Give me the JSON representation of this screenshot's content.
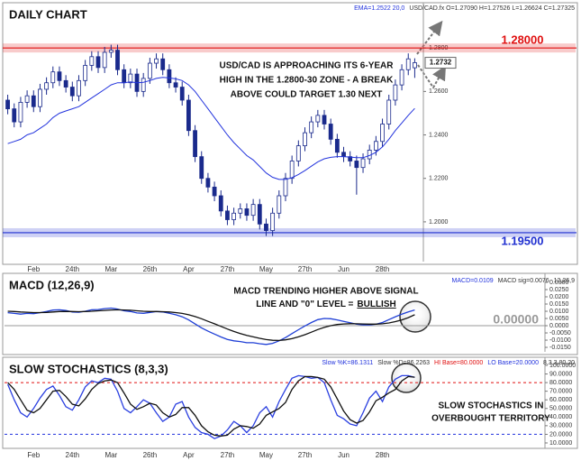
{
  "chart_data": [
    {
      "type": "candlestick",
      "title": "DAILY CHART",
      "header": [
        {
          "text": "EMA=1.2522 20,0",
          "color": "#2233dd"
        },
        {
          "text": "USD/CAD.fx O=1.27090 H=1.27526 L=1.26624 C=1.27325",
          "color": "#333333"
        }
      ],
      "categories": [
        null,
        null,
        null,
        null,
        "Feb",
        null,
        null,
        null,
        null,
        null,
        "24th",
        null,
        null,
        null,
        null,
        null,
        "Mar",
        null,
        null,
        null,
        null,
        null,
        "26th",
        null,
        null,
        null,
        null,
        null,
        "Apr",
        null,
        null,
        null,
        null,
        null,
        "27th",
        null,
        null,
        null,
        null,
        null,
        "May",
        null,
        null,
        null,
        null,
        null,
        "27th",
        null,
        null,
        null,
        null,
        null,
        "Jun",
        null,
        null,
        null,
        null,
        null,
        "28th",
        null,
        null,
        null,
        null,
        null
      ],
      "open": [
        1.256,
        1.252,
        1.246,
        1.255,
        1.258,
        1.253,
        1.261,
        1.264,
        1.269,
        1.265,
        1.262,
        1.258,
        1.265,
        1.272,
        1.276,
        1.271,
        1.278,
        1.279,
        1.27,
        1.264,
        1.268,
        1.26,
        1.266,
        1.273,
        1.275,
        1.27,
        1.264,
        1.262,
        1.256,
        1.242,
        1.23,
        1.22,
        1.216,
        1.212,
        1.205,
        1.201,
        1.204,
        1.206,
        1.203,
        1.208,
        1.199,
        1.196,
        1.204,
        1.212,
        1.22,
        1.228,
        1.235,
        1.241,
        1.246,
        1.249,
        1.245,
        1.238,
        1.232,
        1.23,
        1.228,
        1.225,
        1.229,
        1.233,
        1.237,
        1.245,
        1.256,
        1.263,
        1.27,
        1.2709
      ],
      "high": [
        1.2585,
        1.2545,
        1.2575,
        1.2605,
        1.2605,
        1.2635,
        1.2665,
        1.2715,
        1.2715,
        1.2675,
        1.2645,
        1.2675,
        1.2745,
        1.2785,
        1.2785,
        1.2805,
        1.2815,
        1.2815,
        1.2725,
        1.2705,
        1.2705,
        1.2685,
        1.2755,
        1.2775,
        1.2775,
        1.2725,
        1.2665,
        1.2645,
        1.2585,
        1.2445,
        1.2325,
        1.2225,
        1.2185,
        1.2145,
        1.2075,
        1.2065,
        1.2085,
        1.2085,
        1.2105,
        1.2105,
        1.2015,
        1.2065,
        1.2145,
        1.2225,
        1.2305,
        1.2375,
        1.2435,
        1.2485,
        1.2515,
        1.2515,
        1.2475,
        1.2405,
        1.2345,
        1.2325,
        1.2305,
        1.2315,
        1.2355,
        1.2395,
        1.2475,
        1.2585,
        1.2655,
        1.2725,
        1.2775,
        1.27526
      ],
      "low": [
        1.2495,
        1.2435,
        1.2435,
        1.2525,
        1.2505,
        1.2505,
        1.2585,
        1.2615,
        1.2625,
        1.2595,
        1.2555,
        1.2555,
        1.2625,
        1.2695,
        1.2685,
        1.2685,
        1.2755,
        1.2675,
        1.2615,
        1.2615,
        1.2575,
        1.2575,
        1.2635,
        1.2705,
        1.2675,
        1.2615,
        1.2595,
        1.2535,
        1.2395,
        1.2275,
        1.2175,
        1.2135,
        1.2095,
        1.2025,
        1.1985,
        1.1985,
        1.2015,
        1.2005,
        1.2005,
        1.1965,
        1.1935,
        1.1935,
        1.2015,
        1.2095,
        1.2175,
        1.2255,
        1.2325,
        1.2385,
        1.2435,
        1.2425,
        1.2355,
        1.2295,
        1.2275,
        1.2255,
        1.2125,
        1.2225,
        1.2265,
        1.2305,
        1.2345,
        1.2425,
        1.2535,
        1.2605,
        1.2675,
        1.26624
      ],
      "close": [
        1.252,
        1.246,
        1.255,
        1.258,
        1.253,
        1.261,
        1.264,
        1.269,
        1.265,
        1.262,
        1.258,
        1.265,
        1.272,
        1.276,
        1.271,
        1.278,
        1.279,
        1.27,
        1.264,
        1.268,
        1.26,
        1.266,
        1.273,
        1.275,
        1.27,
        1.264,
        1.262,
        1.256,
        1.242,
        1.23,
        1.22,
        1.216,
        1.212,
        1.205,
        1.201,
        1.204,
        1.206,
        1.203,
        1.208,
        1.199,
        1.196,
        1.204,
        1.212,
        1.22,
        1.228,
        1.235,
        1.241,
        1.246,
        1.249,
        1.245,
        1.238,
        1.232,
        1.23,
        1.228,
        1.225,
        1.229,
        1.233,
        1.237,
        1.245,
        1.256,
        1.263,
        1.27,
        1.275,
        1.27325
      ],
      "up_color": "#ffffff",
      "down_color": "#1a2a8c",
      "overlay": {
        "color": "#2233dd",
        "values": [
          1.236,
          1.237,
          1.238,
          1.24,
          1.241,
          1.243,
          1.245,
          1.248,
          1.25,
          1.251,
          1.252,
          1.253,
          1.255,
          1.257,
          1.259,
          1.261,
          1.263,
          1.264,
          1.264,
          1.2644,
          1.264,
          1.2642,
          1.265,
          1.266,
          1.2665,
          1.2662,
          1.2658,
          1.265,
          1.263,
          1.26,
          1.256,
          1.252,
          1.248,
          1.244,
          1.24,
          1.2365,
          1.2335,
          1.2305,
          1.2285,
          1.2255,
          1.2225,
          1.2205,
          1.2195,
          1.2195,
          1.2203,
          1.2218,
          1.2236,
          1.2256,
          1.2276,
          1.229,
          1.2297,
          1.23,
          1.23,
          1.2298,
          1.2295,
          1.2295,
          1.2305,
          1.232,
          1.2345,
          1.238,
          1.242,
          1.2455,
          1.249,
          1.2522
        ]
      },
      "ylim": [
        1.1817,
        1.3
      ],
      "yticks": [
        {
          "value": 1.2,
          "label": "1.2000"
        },
        {
          "value": 1.22,
          "label": "1.2200"
        },
        {
          "value": 1.24,
          "label": "1.2400"
        },
        {
          "value": 1.26,
          "label": "1.2600"
        },
        {
          "value": 1.28,
          "label": "1.2800"
        }
      ],
      "levels": [
        {
          "value": 1.28,
          "label": "1.28000",
          "color": "#e01010",
          "style": "band"
        },
        {
          "value": 1.195,
          "label": "1.19500",
          "color": "#1f2fd0",
          "style": "band"
        }
      ],
      "last_price": {
        "value": 1.2732,
        "label": "1.2732"
      },
      "annotation": {
        "lines": [
          "USD/CAD IS APPROACHING ITS 6-YEAR",
          "HIGH IN THE 1.2800-30 ZONE - A BREAK",
          "ABOVE COULD TARGET 1.30 NEXT"
        ]
      }
    },
    {
      "type": "line",
      "title": "MACD (12,26,9)",
      "header": [
        {
          "text": "MACD=0.0109",
          "color": "#2233dd"
        },
        {
          "text": "MACD sig=0.0076",
          "color": "#333333"
        },
        {
          "text": "12,26,9",
          "color": "#333333"
        }
      ],
      "series": [
        {
          "color": "#1f3fd6",
          "values": [
            0.009,
            0.0085,
            0.008,
            0.0085,
            0.0083,
            0.009,
            0.0098,
            0.0108,
            0.011,
            0.0105,
            0.0095,
            0.0093,
            0.01,
            0.011,
            0.0112,
            0.0118,
            0.0122,
            0.0115,
            0.0103,
            0.0098,
            0.0088,
            0.0086,
            0.0092,
            0.0098,
            0.0095,
            0.0086,
            0.0076,
            0.0062,
            0.004,
            0.0012,
            -0.0015,
            -0.0038,
            -0.0058,
            -0.0078,
            -0.0095,
            -0.0105,
            -0.011,
            -0.0118,
            -0.0118,
            -0.0125,
            -0.013,
            -0.0122,
            -0.0105,
            -0.0082,
            -0.0055,
            -0.0028,
            -0.0002,
            0.0022,
            0.0042,
            0.005,
            0.0048,
            0.004,
            0.003,
            0.002,
            0.001,
            0.0006,
            0.0006,
            0.001,
            0.0022,
            0.0042,
            0.0062,
            0.008,
            0.0096,
            0.0109
          ]
        },
        {
          "color": "#111111",
          "values": [
            0.01,
            0.0098,
            0.0095,
            0.0093,
            0.0091,
            0.0091,
            0.0092,
            0.0095,
            0.0098,
            0.0099,
            0.0098,
            0.0097,
            0.0098,
            0.01,
            0.0103,
            0.0106,
            0.0109,
            0.011,
            0.0109,
            0.0107,
            0.0103,
            0.01,
            0.0098,
            0.0098,
            0.0097,
            0.0095,
            0.0091,
            0.0085,
            0.0076,
            0.0063,
            0.0048,
            0.003,
            0.0013,
            -0.0005,
            -0.0023,
            -0.004,
            -0.0054,
            -0.0067,
            -0.0077,
            -0.0087,
            -0.0096,
            -0.0101,
            -0.0102,
            -0.0098,
            -0.009,
            -0.0077,
            -0.0062,
            -0.0045,
            -0.0027,
            -0.0012,
            0,
            0.0008,
            0.0012,
            0.0014,
            0.0013,
            0.0012,
            0.0011,
            0.0011,
            0.0013,
            0.0019,
            0.0028,
            0.004,
            0.0056,
            0.0076
          ]
        }
      ],
      "ylim": [
        -0.0181,
        0.035
      ],
      "yticks": [
        {
          "value": -0.015,
          "label": "-0.0150"
        },
        {
          "value": -0.01,
          "label": "-0.0100"
        },
        {
          "value": -0.005,
          "label": "-0.0050"
        },
        {
          "value": 0,
          "label": "0.0000"
        },
        {
          "value": 0.005,
          "label": "0.0050"
        },
        {
          "value": 0.01,
          "label": "0.0100"
        },
        {
          "value": 0.015,
          "label": "0.0150"
        },
        {
          "value": 0.02,
          "label": "0.0200"
        },
        {
          "value": 0.025,
          "label": "0.0250"
        },
        {
          "value": 0.03,
          "label": "0.0300"
        }
      ],
      "zero_label": {
        "value": 0,
        "label": "0.00000"
      },
      "annotation": {
        "lines": [
          "MACD TRENDING HIGHER ABOVE SIGNAL",
          "LINE AND \"0\" LEVEL ="
        ],
        "emphasis": "BULLISH"
      }
    },
    {
      "type": "line",
      "title": "SLOW STOCHASTICS (8,3,3)",
      "header": [
        {
          "text": "Slow %K=86.1311",
          "color": "#2233dd"
        },
        {
          "text": "Slow %D=86.2263",
          "color": "#333333"
        },
        {
          "text": "HI Base=80.0000",
          "color": "#e01010"
        },
        {
          "text": "LO Base=20.0000",
          "color": "#2233dd"
        },
        {
          "text": "8,3,3,80,20",
          "color": "#333333"
        }
      ],
      "series": [
        {
          "color": "#2a3fe0",
          "values": [
            78,
            60,
            45,
            40,
            50,
            62,
            72,
            76,
            65,
            52,
            48,
            60,
            75,
            82,
            80,
            85,
            84,
            70,
            50,
            45,
            52,
            60,
            56,
            45,
            35,
            40,
            55,
            58,
            40,
            28,
            22,
            20,
            15,
            18,
            25,
            35,
            30,
            22,
            30,
            45,
            52,
            40,
            58,
            72,
            85,
            88,
            87,
            85,
            86,
            80,
            60,
            42,
            38,
            32,
            30,
            45,
            62,
            70,
            58,
            75,
            84,
            88,
            88,
            86.1311
          ]
        },
        {
          "color": "#111111",
          "values": [
            80,
            72,
            60,
            48,
            45,
            50,
            60,
            70,
            71,
            64,
            55,
            53,
            61,
            72,
            79,
            82,
            83,
            80,
            68,
            55,
            49,
            52,
            56,
            54,
            45,
            40,
            43,
            51,
            51,
            42,
            30,
            23,
            19,
            18,
            19,
            26,
            30,
            29,
            27,
            32,
            42,
            46,
            50,
            57,
            72,
            82,
            87,
            87,
            86,
            84,
            75,
            61,
            47,
            37,
            33,
            36,
            46,
            59,
            63,
            68,
            72,
            82,
            87,
            86.2263
          ]
        }
      ],
      "ylim": [
        3.7,
        107.3
      ],
      "yticks": [
        {
          "value": 10,
          "label": "10.0000"
        },
        {
          "value": 20,
          "label": "20.0000"
        },
        {
          "value": 30,
          "label": "30.0000"
        },
        {
          "value": 40,
          "label": "40.0000"
        },
        {
          "value": 50,
          "label": "50.0000"
        },
        {
          "value": 60,
          "label": "60.0000"
        },
        {
          "value": 70,
          "label": "70.0000"
        },
        {
          "value": 80,
          "label": "80.0000"
        },
        {
          "value": 90,
          "label": "90.0000"
        },
        {
          "value": 100,
          "label": "100.0000"
        }
      ],
      "levels": [
        {
          "value": 80,
          "color": "#e01010",
          "style": "dashed"
        },
        {
          "value": 20,
          "color": "#2233dd",
          "style": "dashed"
        }
      ],
      "annotation": {
        "lines": [
          "SLOW STOCHASTICS IN",
          "OVERBOUGHT TERRITORY"
        ]
      }
    }
  ]
}
